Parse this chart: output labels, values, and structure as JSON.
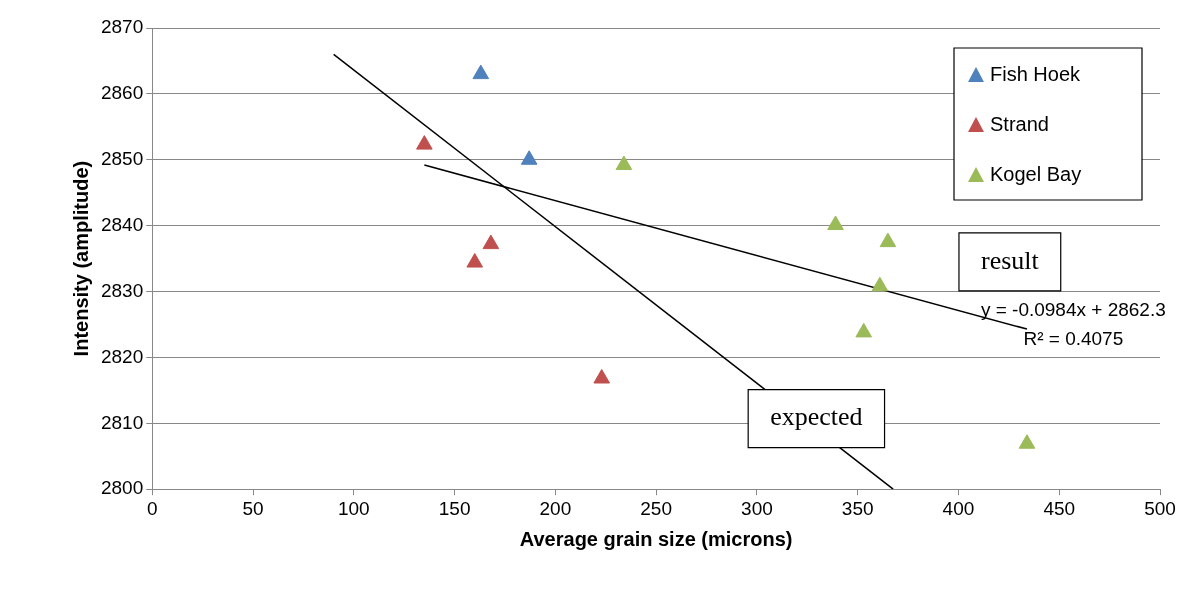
{
  "chart_data": {
    "type": "scatter",
    "xlabel": "Average grain size (microns)",
    "ylabel": "Intensity (amplitude)",
    "xlim": [
      0,
      500
    ],
    "xticks": [
      0,
      50,
      100,
      150,
      200,
      250,
      300,
      350,
      400,
      450,
      500
    ],
    "ylim": [
      2800,
      2870
    ],
    "yticks": [
      2800,
      2810,
      2820,
      2830,
      2840,
      2850,
      2860,
      2870
    ],
    "grid": "y",
    "legend": "top right",
    "series": [
      {
        "name": "Fish Hoek",
        "color": "#4f81bd",
        "marker": "triangle",
        "x": [
          163,
          187
        ],
        "values": [
          2863,
          2850
        ]
      },
      {
        "name": "Strand",
        "color": "#c0504d",
        "marker": "triangle",
        "x": [
          135,
          160,
          168,
          223
        ],
        "values": [
          2852.3,
          2834.4,
          2837.2,
          2816.8
        ]
      },
      {
        "name": "Kogel Bay",
        "color": "#9bbb59",
        "marker": "triangle",
        "x": [
          234,
          339,
          365,
          361,
          353,
          434
        ],
        "values": [
          2849.2,
          2840.1,
          2837.5,
          2830.8,
          2823.8,
          2806.9
        ]
      },
      {
        "type": "line",
        "color": "#000000",
        "marker": "none",
        "x": [
          135,
          434
        ],
        "values": [
          2849.2,
          2824.3
        ]
      },
      {
        "type": "line",
        "color": "#000000",
        "marker": "none",
        "x": [
          90,
          367.6
        ],
        "values": [
          2866,
          2800
        ]
      }
    ],
    "annotations": [
      "result",
      "expected",
      "y = -0.0984x + 2862.3",
      "R² = 0.4075"
    ]
  }
}
